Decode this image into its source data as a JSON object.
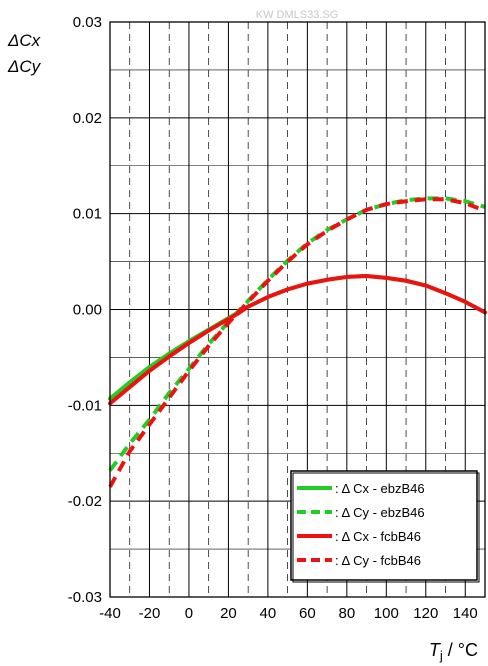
{
  "watermark": "KW DMLS33.SG",
  "chart_data": {
    "type": "line",
    "ylabel_lines": [
      "ΔCx",
      "ΔCy"
    ],
    "xlabel_main": "T",
    "xlabel_sub": "j",
    "xlabel_unit": " / °C",
    "xlim": [
      -40,
      150
    ],
    "ylim": [
      -0.03,
      0.03
    ],
    "x_ticks": [
      -40,
      -20,
      0,
      20,
      40,
      60,
      80,
      100,
      120,
      140
    ],
    "x_tick_labels": [
      "-40",
      "-20",
      "0",
      "20",
      "40",
      "60",
      "80",
      "100",
      "120",
      "140"
    ],
    "y_ticks": [
      -0.03,
      -0.02,
      -0.01,
      0.0,
      0.01,
      0.02,
      0.03
    ],
    "y_tick_labels": [
      "-0.03",
      "-0.02",
      "-0.01",
      "0.00",
      "0.01",
      "0.02",
      "0.03"
    ],
    "grid": {
      "major_x": [
        -40,
        -20,
        0,
        20,
        40,
        60,
        80,
        100,
        120,
        140
      ],
      "minor_x_dashed": [
        -30,
        -10,
        10,
        30,
        50,
        70,
        90,
        110,
        130,
        150
      ],
      "major_y": [
        -0.03,
        -0.02,
        -0.01,
        0.0,
        0.01,
        0.02,
        0.03
      ],
      "minor_y": [
        -0.025,
        -0.015,
        -0.005,
        0.005,
        0.015,
        0.025
      ]
    },
    "legend_position": "bottom-right",
    "series": [
      {
        "name": ": Δ Cx - ebzB46",
        "color": "#22cc22",
        "dash": "solid",
        "x": [
          -40,
          -30,
          -20,
          -10,
          0,
          10,
          20,
          25,
          30,
          40,
          50,
          60,
          70,
          80,
          90,
          100,
          110,
          120,
          130,
          140,
          150
        ],
        "y": [
          -0.0093,
          -0.0076,
          -0.006,
          -0.0046,
          -0.0033,
          -0.0021,
          -0.0009,
          -0.0003,
          0.0003,
          0.0013,
          0.0021,
          0.0027,
          0.0031,
          0.0034,
          0.0035,
          0.0033,
          0.003,
          0.0025,
          0.0017,
          0.0008,
          -0.0003
        ]
      },
      {
        "name": ": Δ Cy - ebzB46",
        "color": "#22cc22",
        "dash": "dashed",
        "x": [
          -40,
          -30,
          -20,
          -10,
          0,
          10,
          20,
          25,
          30,
          40,
          50,
          60,
          70,
          80,
          90,
          100,
          110,
          120,
          130,
          140,
          150
        ],
        "y": [
          -0.0168,
          -0.014,
          -0.0115,
          -0.0087,
          -0.0062,
          -0.0036,
          -0.0013,
          -0.0002,
          0.0009,
          0.0031,
          0.0051,
          0.0069,
          0.0083,
          0.0094,
          0.0104,
          0.011,
          0.0114,
          0.0116,
          0.0116,
          0.0113,
          0.0107
        ]
      },
      {
        "name": ": Δ Cx - fcbB46",
        "color": "#ee1111",
        "dash": "solid",
        "x": [
          -40,
          -30,
          -20,
          -10,
          0,
          10,
          20,
          25,
          30,
          40,
          50,
          60,
          70,
          80,
          90,
          100,
          110,
          120,
          130,
          140,
          150
        ],
        "y": [
          -0.0098,
          -0.0081,
          -0.0064,
          -0.0049,
          -0.0035,
          -0.0022,
          -0.001,
          -0.0004,
          0.0003,
          0.0013,
          0.0021,
          0.0027,
          0.0031,
          0.0034,
          0.0035,
          0.0033,
          0.003,
          0.0025,
          0.0017,
          0.0008,
          -0.0003
        ]
      },
      {
        "name": ": Δ Cy - fcbB46",
        "color": "#ee1111",
        "dash": "dashed",
        "x": [
          -40,
          -30,
          -20,
          -10,
          0,
          10,
          20,
          25,
          30,
          40,
          50,
          60,
          70,
          80,
          90,
          100,
          110,
          120,
          130,
          140,
          150
        ],
        "y": [
          -0.0185,
          -0.0148,
          -0.012,
          -0.0092,
          -0.0064,
          -0.0038,
          -0.0014,
          -0.0003,
          0.0008,
          0.003,
          0.005,
          0.0068,
          0.0082,
          0.0094,
          0.0104,
          0.011,
          0.0113,
          0.0115,
          0.0115,
          0.0111,
          0.0103
        ]
      }
    ]
  }
}
